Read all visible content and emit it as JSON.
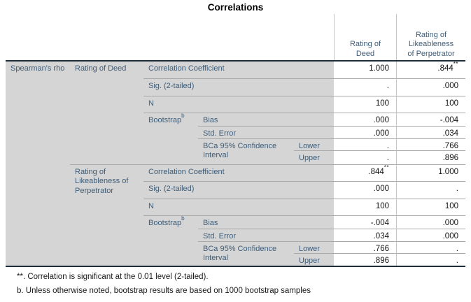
{
  "title": "Correlations",
  "colors": {
    "label_background": "#d5d5d5",
    "label_text": "#3f5d78",
    "value_text": "#141414",
    "thick_rule": "#1d2d3a",
    "thin_rule": "#a9a9a9"
  },
  "table": {
    "dimension_label": "Spearman's rho",
    "column_headers": {
      "deed": "Rating of Deed",
      "likeableness": "Rating of Likeableness of Perpetrator"
    },
    "blocks": [
      {
        "variable": "Rating of Deed",
        "bootstrap": {
          "label": "Bootstrap",
          "sup": "b"
        },
        "bca": {
          "label": "BCa 95% Confidence Interval"
        },
        "correlation": {
          "label": "Correlation Coefficient",
          "v_deed": "1.000",
          "v_like": ".844",
          "v_like_sup": "**"
        },
        "sig": {
          "label": "Sig. (2-tailed)",
          "v_deed": ".",
          "v_like": ".000"
        },
        "n": {
          "label": "N",
          "v_deed": "100",
          "v_like": "100"
        },
        "bias": {
          "label": "Bias",
          "v_deed": ".000",
          "v_like": "-.004"
        },
        "std_error": {
          "label": "Std. Error",
          "v_deed": ".000",
          "v_like": ".034"
        },
        "lower": {
          "label": "Lower",
          "v_deed": ".",
          "v_like": ".766"
        },
        "upper": {
          "label": "Upper",
          "v_deed": ".",
          "v_like": ".896"
        }
      },
      {
        "variable": "Rating of Likeableness of Perpetrator",
        "bootstrap": {
          "label": "Bootstrap",
          "sup": "b"
        },
        "bca": {
          "label": "BCa 95% Confidence Interval"
        },
        "correlation": {
          "label": "Correlation Coefficient",
          "v_deed": ".844",
          "v_deed_sup": "**",
          "v_like": "1.000"
        },
        "sig": {
          "label": "Sig. (2-tailed)",
          "v_deed": ".000",
          "v_like": "."
        },
        "n": {
          "label": "N",
          "v_deed": "100",
          "v_like": "100"
        },
        "bias": {
          "label": "Bias",
          "v_deed": "-.004",
          "v_like": ".000"
        },
        "std_error": {
          "label": "Std. Error",
          "v_deed": ".034",
          "v_like": ".000"
        },
        "lower": {
          "label": "Lower",
          "v_deed": ".766",
          "v_like": "."
        },
        "upper": {
          "label": "Upper",
          "v_deed": ".896",
          "v_like": "."
        }
      }
    ]
  },
  "footnotes": [
    "**. Correlation is significant at the 0.01 level (2-tailed).",
    "b. Unless otherwise noted, bootstrap results are based on 1000 bootstrap samples"
  ]
}
